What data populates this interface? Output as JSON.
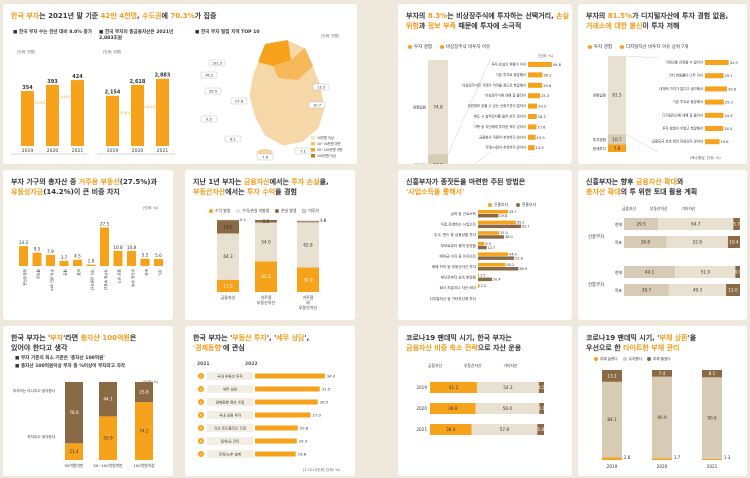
{
  "colors": {
    "orange": "#f7a21b",
    "brown": "#8a6a45",
    "beige": "#d8cbb5",
    "light": "#e8e1d2",
    "accent": "#f19a1a",
    "bg": "#efe8dc"
  },
  "c1": {
    "title_a": "한국 부자",
    "title_b": "는 2021년 말 기준 ",
    "title_c": "42만 4천명",
    "title_d": ", ",
    "title_e": "수도권",
    "title_f": "에 ",
    "title_g": "70.3%",
    "title_h": "가 집중",
    "sub1": "■ 한국 부자 수는 전년 대비 8.0% 증가",
    "sub2": "■ 한국 부자의 총금융자산은 2021년 2,883조원",
    "sub3": "■ 한국 부자 밀집 지역 TOP 10",
    "unit1": "(단위: 천명)",
    "unit2": "(단위: 조원)",
    "unit3": "(단위: 천명)",
    "growth_pct": "증가율",
    "map_labels": [
      "191.5",
      "76.2",
      "39.5",
      "27.6",
      "13.3",
      "10.7",
      "9.5",
      "8.1",
      "7.6",
      "7.1"
    ],
    "map_legend": [
      "10만명 이상",
      "10~30만명 미만",
      "50~100만명 미만",
      "100만명 이상"
    ]
  },
  "c2": {
    "title_a": "부자의 ",
    "title_b": "8.3%",
    "title_c": "는 비상장주식에 투자하는 선택거리, ",
    "title_d": "손실 위험",
    "title_e": "과 ",
    "title_f": "정보 부족",
    "title_g": " 때문에 투자에 소극적",
    "legend": [
      "투자 경험",
      "비상장주식 비투자 이유"
    ],
    "unit": "(단위: %)"
  },
  "c3": {
    "title_a": "부자의 ",
    "title_b": "81.5%",
    "title_c": "가 디지털자산에 투자 경험 없음,",
    "title_d": "거래소에 대한 불신",
    "title_e": "이 투자 저해",
    "legend": [
      "투자 경험",
      "디지털자산 비투자 이유 상위 7개"
    ],
    "unit": "(복수응답, 단위: %)"
  },
  "c4": {
    "title_a": "부자 가구의 총자산 중 ",
    "title_b": "거주용 부동산",
    "title_c": "(27.5%)과",
    "title_d": "유동성자금",
    "title_e": "(14.2%)이 큰 비중 차지",
    "unit": "(단위: %)"
  },
  "c5": {
    "title_a": "지난 1년 부자는 ",
    "title_b": "금융자산",
    "title_c": "에서는 ",
    "title_d": "투자 손실",
    "title_e": "을,",
    "title_f": "부동산자산",
    "title_g": "에서는 ",
    "title_h": "투자 수익",
    "title_i": "을 경험",
    "legend": [
      "수익 발생",
      "수익/손실 미발생",
      "손실 발생",
      "미투자"
    ],
    "unit": "(단위: %)"
  },
  "c6": {
    "title_a": "신흥부자가 종잣돈을 마련한 주된 방법은",
    "title_b": "'사업소득을 통해서'",
    "legend": [
      "신흥부자",
      "전통부자"
    ],
    "unit": "(단위: %)"
  },
  "c7": {
    "title_a": "신흥부자는 향후 ",
    "title_b": "금융자산 확대",
    "title_c": "와",
    "title_d": "총자산 확대",
    "title_e": "의 투 위한 토대 활용 계획",
    "legend": [
      "금융자산",
      "부동산자산",
      "기타자산"
    ],
    "unit": "(단위: %)",
    "row_labels": [
      "신흥부자",
      "전통부자"
    ],
    "sub_labels": [
      "현재",
      "목표",
      "현재",
      "목표"
    ]
  },
  "c8": {
    "title_a": "한국 부자는 '",
    "title_b": "부자",
    "title_c": "'라면 ",
    "title_d": "총자산 100억원",
    "title_e": "은",
    "title_f": "있어야 한다고 생각",
    "sub1": "■ 부자 기준의 최소 기준은 '총자산 100억원'",
    "sub2": "■ 총자산 100억원이상 부자 중 %이상이 부자라고 자각",
    "unit": "(단위: %)",
    "leg_top": "부자라는 아니라고 생각한다",
    "leg_bot": "부자라고 생각한다"
  },
  "c9": {
    "title_a": "한국 부자는 '",
    "title_b": "부동산 투자",
    "title_c": "', '",
    "title_d": "세무 상담",
    "title_e": "',",
    "title_f": "'경제동향'",
    "title_g": "에 관심",
    "col_a": "2021",
    "col_b": "2022",
    "unit": "(단위: %)",
    "note": "(1+2+3순위, 단위: %)"
  },
  "c10": {
    "title_a": "코로나19 팬데믹 시기, 한국 부자는",
    "title_b": "금융자산 비중 축소 전략",
    "title_c": "으로 자산 운용",
    "legend": [
      "금융자산",
      "부동산자산",
      "기타자산"
    ],
    "unit": "(단위: %)"
  },
  "c11": {
    "title_a": "코로나19 팬데믹 시기, '",
    "title_b": "부채 상환",
    "title_c": "'을",
    "title_d": "우선으로 한 ",
    "title_e": "타이트한 부채 관리",
    "legend": [
      "부채 늘렸다",
      "유지했다",
      "부채 줄였다"
    ],
    "unit": "(단위: %)"
  },
  "chart_data": [
    {
      "id": "c1a",
      "type": "bar",
      "title": "한국 부자 수",
      "categories": [
        "2019",
        "2020",
        "2021"
      ],
      "values": [
        354,
        393,
        424
      ],
      "growth": [
        "10.9%",
        "8.0%"
      ]
    },
    {
      "id": "c1b",
      "type": "bar",
      "title": "한국 부자의 총금융자산",
      "categories": [
        "2019",
        "2020",
        "2021"
      ],
      "values": [
        2154,
        2618,
        2883
      ],
      "labels": [
        "2,154",
        "2,618",
        "2,883"
      ],
      "growth": [
        "21.6%",
        "10.1%"
      ]
    },
    {
      "id": "c2a",
      "type": "bar",
      "categories": [
        "경험없음",
        "투자경험",
        "현재투자중"
      ],
      "values": [
        74.8,
        17.0,
        8.3
      ]
    },
    {
      "id": "c2b",
      "type": "bar",
      "orientation": "horizontal",
      "categories": [
        "투자 손실의 위험이 커서",
        "기존 투자로 충분해서",
        "비상장주식은 거래가 어려울 정도로 복잡해서",
        "비상장주식에 대해 잘 몰라서",
        "관련정보 얻을 수 있는 신뢰기관이 없어서",
        "제도 시 법적조치를 들어 보지 않아서",
        "가족 등 지인에게 투자한 적이 있어서",
        "금융회사 직원이 추천하지 않아서",
        "거래/시장이 추천하지 않아서"
      ],
      "values": [
        49.8,
        30.2,
        29.6,
        25.3,
        19.2,
        18.2,
        17.6,
        15.9,
        13.9
      ]
    },
    {
      "id": "c3a",
      "type": "bar",
      "categories": [
        "경험없음",
        "투자경험",
        "현재투자"
      ],
      "values": [
        81.5,
        10.7,
        7.8
      ]
    },
    {
      "id": "c3b",
      "type": "bar",
      "orientation": "horizontal",
      "categories": [
        "거래소를 신뢰할 수 없어서",
        "가치 변동률이 너무 커서",
        "내재적 가치가 없다고 생각해서",
        "기존 투자로 충분해서",
        "디지털자산에 대해 잘 몰라서",
        "투자 방법이 어렵고 복잡해서",
        "금융당국 보호 방안 마련되지 않아서"
      ],
      "values": [
        31.9,
        25.1,
        29.6,
        25.3,
        24.9,
        24.5,
        19.6
      ]
    },
    {
      "id": "c4",
      "type": "bar",
      "categories": [
        "유동성자금",
        "예적금",
        "주식·펀드·ETF",
        "채권",
        "보험",
        "기타 금융자산",
        "거주용 부동산",
        "빌딩 상가",
        "투자용 주택",
        "토지",
        "기타"
      ],
      "values": [
        14.2,
        9.5,
        7.9,
        3.7,
        4.5,
        1.0,
        27.5,
        10.8,
        10.8,
        5.2,
        5.0
      ]
    },
    {
      "id": "c5",
      "type": "bar",
      "stacked": true,
      "categories": [
        "금융자산",
        "거주용 부동산자산",
        "거주용 외 부동산자산"
      ],
      "series": [
        {
          "name": "수익 발생",
          "values": [
            17.0,
            42.5,
            34.0
          ]
        },
        {
          "name": "수익/손실 미발생",
          "values": [
            64.3,
            54.0,
            62.8
          ]
        },
        {
          "name": "손실 발생",
          "values": [
            18.6,
            3.5,
            1.6
          ]
        },
        {
          "name": "미투자",
          "values": [
            0.1,
            0,
            1.5
          ]
        }
      ]
    },
    {
      "id": "c6",
      "type": "bar",
      "orientation": "horizontal",
      "categories": [
        "급여 등 근로소득",
        "직접 운영하는 사업소득",
        "주식, 펀드 등 금융상품 투자",
        "부모로부터 증여 받았음",
        "예적금 이자 등 이자소득",
        "매매 차익 등 부동산자산 투자",
        "부모로부터 상속 받았음",
        "회사 지분이나 자산 매각",
        "디지털자산 등 기타자산에 투자"
      ],
      "series": [
        {
          "name": "신흥부자",
          "values": [
            43.7,
            55.2,
            31.0,
            9.3,
            44.0,
            40.2,
            1.5,
            2.3,
            0
          ]
        },
        {
          "name": "전통부자",
          "values": [
            29.8,
            62.7,
            38.0,
            12.7,
            52.8,
            58.9,
            20.4,
            0,
            0
          ]
        }
      ]
    },
    {
      "id": "c7",
      "type": "bar",
      "stacked": true,
      "orientation": "horizontal",
      "categories": [
        "신흥부자 현재",
        "신흥부자 목표",
        "전통부자 현재",
        "전통부자 목표"
      ],
      "series": [
        {
          "name": "금융자산",
          "values": [
            29.5,
            36.8,
            44.1,
            38.7
          ]
        },
        {
          "name": "부동산자산",
          "values": [
            64.7,
            52.8,
            51.9,
            49.3
          ]
        },
        {
          "name": "기타자산",
          "values": [
            5.7,
            10.4,
            4.0,
            12.0
          ]
        }
      ]
    },
    {
      "id": "c8",
      "type": "bar",
      "stacked": true,
      "categories": [
        "50억원미만",
        "50~100억원미만",
        "100억원이상"
      ],
      "series": [
        {
          "name": "부자라고 생각한다",
          "values": [
            21.4,
            55.9,
            74.2
          ]
        },
        {
          "name": "부자라는 아니라고 생각한다",
          "values": [
            78.6,
            44.1,
            25.8
          ]
        }
      ]
    },
    {
      "id": "c9",
      "type": "table",
      "categories": [
        "국내 부동산 투자",
        "세무 상담",
        "경제동향 정보 수집",
        "국내 금융 투자",
        "자산 포트폴리오 조정",
        "절세/금 관리",
        "은퇴/노후 설계"
      ],
      "rank_2021": [
        "1",
        "3",
        "2",
        "4",
        "5",
        "6",
        "7"
      ],
      "values": [
        34.0,
        31.5,
        30.5,
        27.0,
        20.8,
        20.3,
        19.8
      ]
    },
    {
      "id": "c10",
      "type": "bar",
      "stacked": true,
      "orientation": "horizontal",
      "categories": [
        "2019",
        "2020",
        "2021"
      ],
      "series": [
        {
          "name": "금융자산",
          "values": [
            41.2,
            39.9,
            36.4
          ]
        },
        {
          "name": "부동산자산",
          "values": [
            54.3,
            56.0,
            57.8
          ]
        },
        {
          "name": "기타자산",
          "values": [
            4.5,
            4.1,
            5.8
          ]
        }
      ]
    },
    {
      "id": "c11",
      "type": "bar",
      "stacked": true,
      "categories": [
        "2019",
        "2020",
        "2021"
      ],
      "series": [
        {
          "name": "부채 늘렸다",
          "values": [
            2.8,
            1.7,
            1.3
          ]
        },
        {
          "name": "유지했다",
          "values": [
            84.1,
            90.9,
            90.6
          ]
        },
        {
          "name": "부채 줄였다",
          "values": [
            13.1,
            7.4,
            8.1
          ]
        }
      ]
    }
  ]
}
